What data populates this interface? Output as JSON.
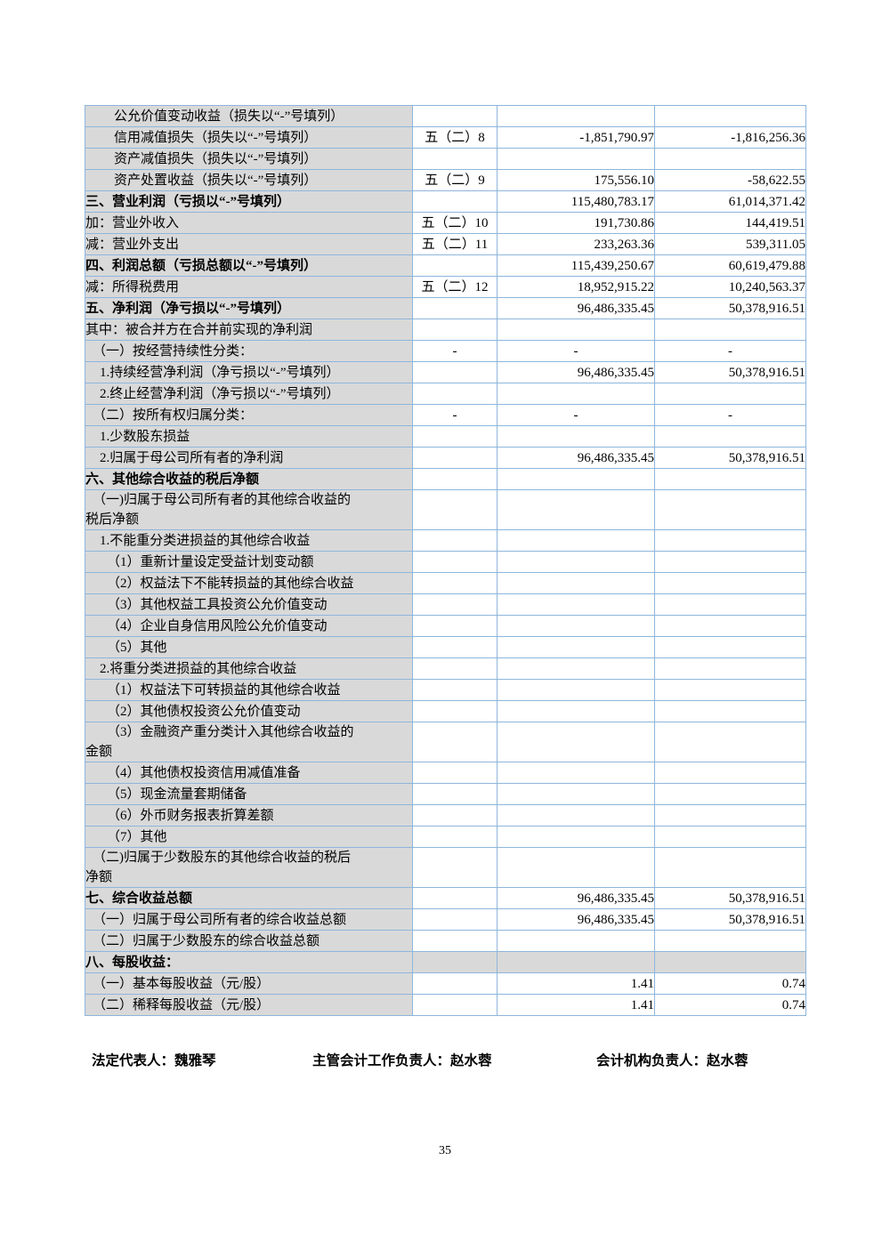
{
  "page": {
    "number": "35"
  },
  "signatures": {
    "legal_representative": "法定代表人：魏雅琴",
    "chief_accountant": "主管会计工作负责人：赵水蓉",
    "accounting_head": "会计机构负责人：赵水蓉"
  },
  "colors": {
    "grid_border": "#8eb6dc",
    "label_fill": "#d9d9d9",
    "text": "#000000"
  },
  "table": {
    "columns": [
      "item",
      "note_ref",
      "current_period_amount",
      "prior_period_amount"
    ],
    "rows": [
      {
        "label": "公允价值变动收益（损失以“-”号填列）",
        "note": "",
        "current": "",
        "prior": "",
        "indent": 4,
        "bold": false,
        "dash": false,
        "gray": false
      },
      {
        "label": "信用减值损失（损失以“-”号填列）",
        "note": "五（二）8",
        "current": "-1,851,790.97",
        "prior": "-1,816,256.36",
        "indent": 4,
        "bold": false,
        "dash": false,
        "gray": false
      },
      {
        "label": "资产减值损失（损失以“-”号填列）",
        "note": "",
        "current": "",
        "prior": "",
        "indent": 4,
        "bold": false,
        "dash": false,
        "gray": false
      },
      {
        "label": "资产处置收益（损失以“-”号填列）",
        "note": "五（二）9",
        "current": "175,556.10",
        "prior": "-58,622.55",
        "indent": 4,
        "bold": false,
        "dash": false,
        "gray": false
      },
      {
        "label": "三、营业利润（亏损以“-”号填列）",
        "note": "",
        "current": "115,480,783.17",
        "prior": "61,014,371.42",
        "indent": 0,
        "bold": true,
        "dash": false,
        "gray": false
      },
      {
        "label": "加：营业外收入",
        "note": "五（二）10",
        "current": "191,730.86",
        "prior": "144,419.51",
        "indent": 0,
        "bold": false,
        "dash": false,
        "gray": false
      },
      {
        "label": "减：营业外支出",
        "note": "五（二）11",
        "current": "233,263.36",
        "prior": "539,311.05",
        "indent": 0,
        "bold": false,
        "dash": false,
        "gray": false
      },
      {
        "label": "四、利润总额（亏损总额以“-”号填列）",
        "note": "",
        "current": "115,439,250.67",
        "prior": "60,619,479.88",
        "indent": 0,
        "bold": true,
        "dash": false,
        "gray": false
      },
      {
        "label": "减：所得税费用",
        "note": "五（二）12",
        "current": "18,952,915.22",
        "prior": "10,240,563.37",
        "indent": 0,
        "bold": false,
        "dash": false,
        "gray": false
      },
      {
        "label": "五、净利润（净亏损以“-”号填列）",
        "note": "",
        "current": "96,486,335.45",
        "prior": "50,378,916.51",
        "indent": 0,
        "bold": true,
        "dash": false,
        "gray": false
      },
      {
        "label": "其中：被合并方在合并前实现的净利润",
        "note": "",
        "current": "",
        "prior": "",
        "indent": 0,
        "bold": false,
        "dash": false,
        "gray": false
      },
      {
        "label": "（一）按经营持续性分类：",
        "note": "-",
        "current": "-",
        "prior": "-",
        "indent": 1,
        "bold": false,
        "dash": true,
        "gray": false
      },
      {
        "label": "1.持续经营净利润（净亏损以“-”号填列）",
        "note": "",
        "current": "96,486,335.45",
        "prior": "50,378,916.51",
        "indent": 2,
        "bold": false,
        "dash": false,
        "gray": false
      },
      {
        "label": "2.终止经营净利润（净亏损以“-”号填列）",
        "note": "",
        "current": "",
        "prior": "",
        "indent": 2,
        "bold": false,
        "dash": false,
        "gray": false
      },
      {
        "label": "（二）按所有权归属分类：",
        "note": "-",
        "current": "-",
        "prior": "-",
        "indent": 1,
        "bold": false,
        "dash": true,
        "gray": false
      },
      {
        "label": "1.少数股东损益",
        "note": "",
        "current": "",
        "prior": "",
        "indent": 2,
        "bold": false,
        "dash": false,
        "gray": false
      },
      {
        "label": "2.归属于母公司所有者的净利润",
        "note": "",
        "current": "96,486,335.45",
        "prior": "50,378,916.51",
        "indent": 2,
        "bold": false,
        "dash": false,
        "gray": false
      },
      {
        "label": "六、其他综合收益的税后净额",
        "note": "",
        "current": "",
        "prior": "",
        "indent": 0,
        "bold": true,
        "dash": false,
        "gray": false
      },
      {
        "label": "（一)归属于母公司所有者的其他综合收益的\n税后净额",
        "note": "",
        "current": "",
        "prior": "",
        "indent": 1,
        "bold": false,
        "dash": false,
        "gray": false
      },
      {
        "label": "1.不能重分类进损益的其他综合收益",
        "note": "",
        "current": "",
        "prior": "",
        "indent": 2,
        "bold": false,
        "dash": false,
        "gray": false
      },
      {
        "label": "（1）重新计量设定受益计划变动额",
        "note": "",
        "current": "",
        "prior": "",
        "indent": 3,
        "bold": false,
        "dash": false,
        "gray": false
      },
      {
        "label": "（2）权益法下不能转损益的其他综合收益",
        "note": "",
        "current": "",
        "prior": "",
        "indent": 3,
        "bold": false,
        "dash": false,
        "gray": false
      },
      {
        "label": "（3）其他权益工具投资公允价值变动",
        "note": "",
        "current": "",
        "prior": "",
        "indent": 3,
        "bold": false,
        "dash": false,
        "gray": false
      },
      {
        "label": "（4）企业自身信用风险公允价值变动",
        "note": "",
        "current": "",
        "prior": "",
        "indent": 3,
        "bold": false,
        "dash": false,
        "gray": false
      },
      {
        "label": "（5）其他",
        "note": "",
        "current": "",
        "prior": "",
        "indent": 3,
        "bold": false,
        "dash": false,
        "gray": false
      },
      {
        "label": "2.将重分类进损益的其他综合收益",
        "note": "",
        "current": "",
        "prior": "",
        "indent": 2,
        "bold": false,
        "dash": false,
        "gray": false
      },
      {
        "label": "（1）权益法下可转损益的其他综合收益",
        "note": "",
        "current": "",
        "prior": "",
        "indent": 3,
        "bold": false,
        "dash": false,
        "gray": false
      },
      {
        "label": "（2）其他债权投资公允价值变动",
        "note": "",
        "current": "",
        "prior": "",
        "indent": 3,
        "bold": false,
        "dash": false,
        "gray": false
      },
      {
        "label": "（3）金融资产重分类计入其他综合收益的\n金额",
        "note": "",
        "current": "",
        "prior": "",
        "indent": 3,
        "bold": false,
        "dash": false,
        "gray": false
      },
      {
        "label": "（4）其他债权投资信用减值准备",
        "note": "",
        "current": "",
        "prior": "",
        "indent": 3,
        "bold": false,
        "dash": false,
        "gray": false
      },
      {
        "label": "（5）现金流量套期储备",
        "note": "",
        "current": "",
        "prior": "",
        "indent": 3,
        "bold": false,
        "dash": false,
        "gray": false
      },
      {
        "label": "（6）外币财务报表折算差额",
        "note": "",
        "current": "",
        "prior": "",
        "indent": 3,
        "bold": false,
        "dash": false,
        "gray": false
      },
      {
        "label": "（7）其他",
        "note": "",
        "current": "",
        "prior": "",
        "indent": 3,
        "bold": false,
        "dash": false,
        "gray": false
      },
      {
        "label": "（二)归属于少数股东的其他综合收益的税后\n净额",
        "note": "",
        "current": "",
        "prior": "",
        "indent": 1,
        "bold": false,
        "dash": false,
        "gray": false
      },
      {
        "label": "七、综合收益总额",
        "note": "",
        "current": "96,486,335.45",
        "prior": "50,378,916.51",
        "indent": 0,
        "bold": true,
        "dash": false,
        "gray": false
      },
      {
        "label": "（一）归属于母公司所有者的综合收益总额",
        "note": "",
        "current": "96,486,335.45",
        "prior": "50,378,916.51",
        "indent": 1,
        "bold": false,
        "dash": false,
        "gray": false
      },
      {
        "label": "（二）归属于少数股东的综合收益总额",
        "note": "",
        "current": "",
        "prior": "",
        "indent": 1,
        "bold": false,
        "dash": false,
        "gray": false
      },
      {
        "label": "八、每股收益：",
        "note": "",
        "current": "",
        "prior": "",
        "indent": 0,
        "bold": true,
        "dash": false,
        "gray": true
      },
      {
        "label": "（一）基本每股收益（元/股）",
        "note": "",
        "current": "1.41",
        "prior": "0.74",
        "indent": 1,
        "bold": false,
        "dash": false,
        "gray": false
      },
      {
        "label": "（二）稀释每股收益（元/股）",
        "note": "",
        "current": "1.41",
        "prior": "0.74",
        "indent": 1,
        "bold": false,
        "dash": false,
        "gray": false
      }
    ]
  }
}
